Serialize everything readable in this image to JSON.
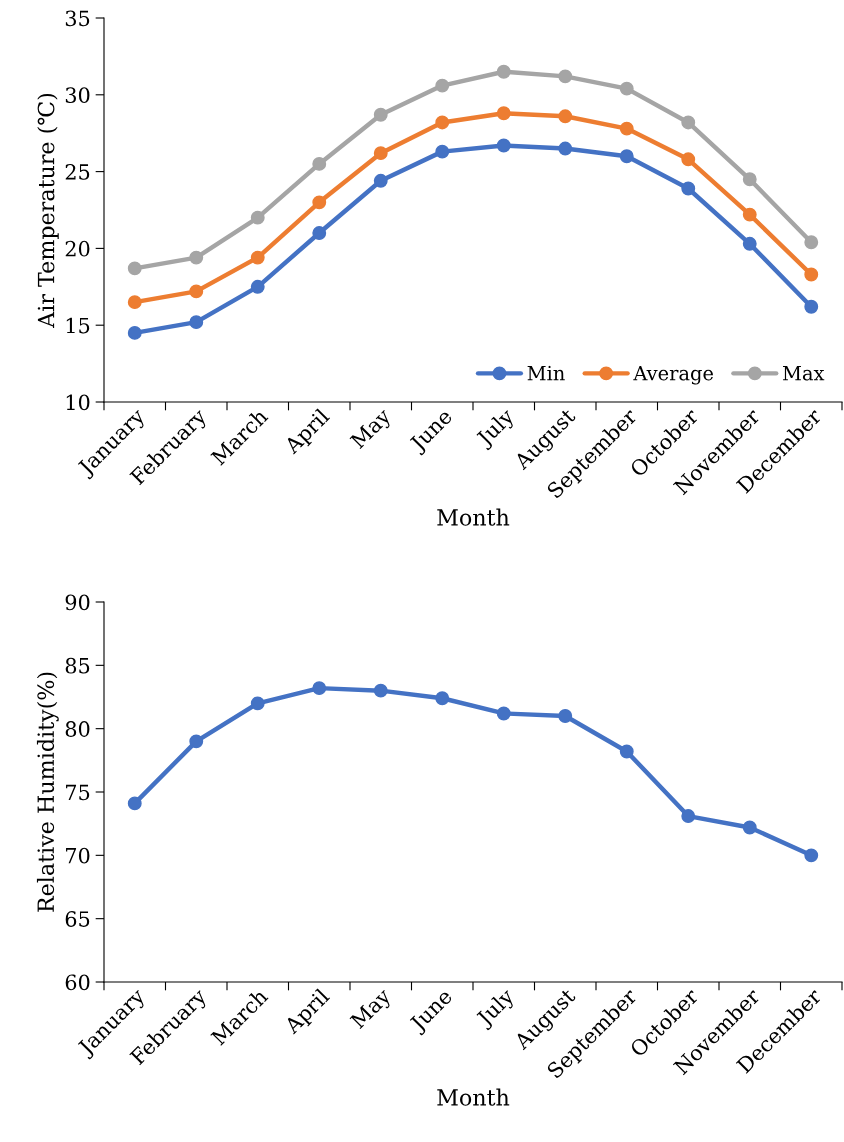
{
  "chart_data": [
    {
      "type": "line",
      "xlabel": "Month",
      "ylabel": "Air Temperature (℃)",
      "categories": [
        "January",
        "February",
        "March",
        "April",
        "May",
        "June",
        "July",
        "August",
        "September",
        "October",
        "November",
        "December"
      ],
      "series": [
        {
          "name": "Min",
          "color": "#4472c4",
          "values": [
            14.5,
            15.2,
            17.5,
            21.0,
            24.4,
            26.3,
            26.7,
            26.5,
            26.0,
            23.9,
            20.3,
            16.2
          ]
        },
        {
          "name": "Average",
          "color": "#ed7d31",
          "values": [
            16.5,
            17.2,
            19.4,
            23.0,
            26.2,
            28.2,
            28.8,
            28.6,
            27.8,
            25.8,
            22.2,
            18.3
          ]
        },
        {
          "name": "Max",
          "color": "#a5a5a5",
          "values": [
            18.7,
            19.4,
            22.0,
            25.5,
            28.7,
            30.6,
            31.5,
            31.2,
            30.4,
            28.2,
            24.5,
            20.4
          ]
        }
      ],
      "ylim": [
        10,
        35
      ],
      "yticks": [
        10,
        15,
        20,
        25,
        30,
        35
      ],
      "grid": false,
      "legend": "bottom right",
      "marker": "circle",
      "line_style": "solid"
    },
    {
      "type": "line",
      "xlabel": "Month",
      "ylabel": "Relative Humidity(%)",
      "categories": [
        "January",
        "February",
        "March",
        "April",
        "May",
        "June",
        "July",
        "August",
        "September",
        "October",
        "November",
        "December"
      ],
      "series": [
        {
          "color": "#4472c4",
          "values": [
            74.1,
            79.0,
            82.0,
            83.2,
            83.0,
            82.4,
            81.2,
            81.0,
            78.2,
            73.1,
            72.2,
            70.0
          ]
        }
      ],
      "ylim": [
        60,
        90
      ],
      "yticks": [
        60,
        65,
        70,
        75,
        80,
        85,
        90
      ],
      "grid": false,
      "legend": false,
      "marker": "circle",
      "line_style": "solid"
    }
  ]
}
